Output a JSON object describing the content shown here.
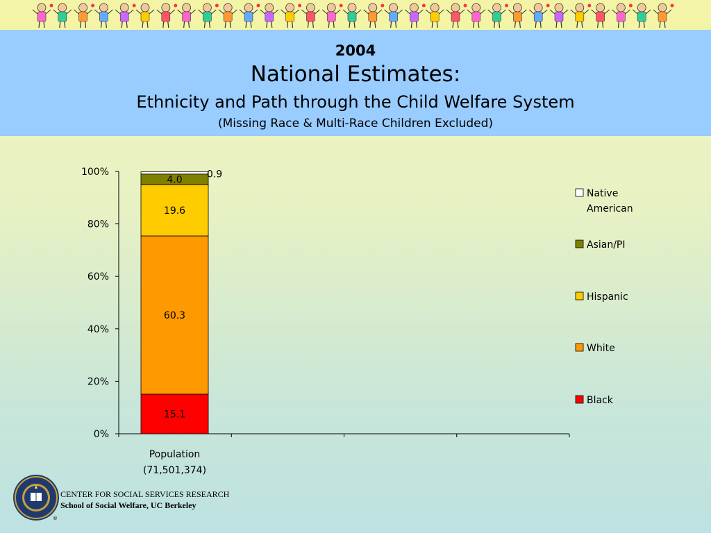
{
  "header": {
    "year": "2004",
    "title": "National Estimates:",
    "subtitle": "Ethnicity and Path through the Child Welfare System",
    "note": "(Missing Race & Multi-Race Children Excluded)"
  },
  "chart_data": {
    "type": "bar",
    "stacked": true,
    "percent": true,
    "categories": [
      "Population"
    ],
    "category_labels": [
      [
        "Population",
        "(71,501,374)"
      ]
    ],
    "ylim": [
      0,
      100
    ],
    "yticks": [
      "0%",
      "20%",
      "40%",
      "60%",
      "80%",
      "100%"
    ],
    "grid": false,
    "legend_position": "right",
    "series": [
      {
        "name": "Black",
        "values": [
          15.1
        ],
        "labels": [
          "15.1"
        ],
        "color": "#ff0000"
      },
      {
        "name": "White",
        "values": [
          60.3
        ],
        "labels": [
          "60.3"
        ],
        "color": "#ff9900"
      },
      {
        "name": "Hispanic",
        "values": [
          19.6
        ],
        "labels": [
          "19.6"
        ],
        "color": "#ffcc00"
      },
      {
        "name": "Asian/PI",
        "values": [
          4.0
        ],
        "labels": [
          "4.0"
        ],
        "color": "#808000"
      },
      {
        "name": "Native American",
        "values": [
          0.9
        ],
        "labels": [
          "0.9"
        ],
        "color": "#ffffff"
      }
    ],
    "legend": [
      [
        "Native",
        "American"
      ],
      [
        "Asian/PI"
      ],
      [
        "Hispanic"
      ],
      [
        "White"
      ],
      [
        "Black"
      ]
    ]
  },
  "footer": {
    "line1": "CENTER FOR SOCIAL SERVICES RESEARCH",
    "line2": "School of Social Welfare, UC Berkeley",
    "seal_text": "THE UNIVERSITY OF CALIFORNIA",
    "seal_year": "1868"
  }
}
